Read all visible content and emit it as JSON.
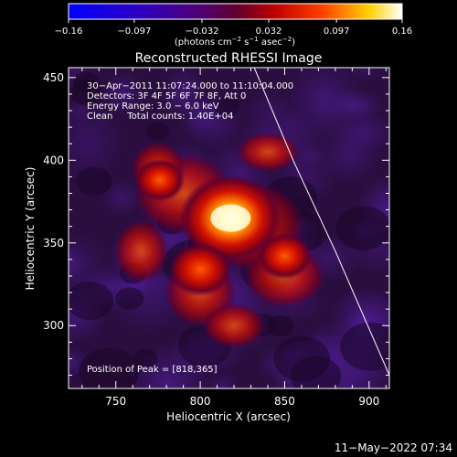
{
  "chart_data": {
    "type": "heatmap",
    "title": "Reconstructed RHESSI Image",
    "xlabel": "Heliocentric X (arcsec)",
    "ylabel": "Heliocentric Y (arcsec)",
    "xlim": [
      722,
      912
    ],
    "ylim": [
      262,
      456
    ],
    "x_ticks": [
      750,
      800,
      850,
      900
    ],
    "y_ticks": [
      300,
      350,
      400,
      450
    ],
    "colorbar": {
      "ticks": [
        -0.16,
        -0.097,
        -0.032,
        0.032,
        0.097,
        0.16
      ],
      "tick_labels": [
        "−0.16",
        "−0.097",
        "−0.032",
        "0.032",
        "0.097",
        "0.16"
      ],
      "range": [
        -0.16,
        0.16
      ],
      "label_prefix": "(photons cm",
      "label_exp1": "−2",
      "label_mid": " s",
      "label_exp2": "−1",
      "label_mid2": " asec",
      "label_exp3": "−2",
      "label_suffix": ")"
    },
    "annotations": [
      "30−Apr−2011 11:07:24.000 to 11:10:04.000",
      "Detectors: 3F 4F 5F 6F 7F 8F, Att 0",
      "Energy Range: 3.0 − 6.0 keV",
      "Clean     Total counts: 1.40E+04"
    ],
    "peak_label": "Position of Peak = [818,365]",
    "peak": [
      818,
      365
    ],
    "sources": [
      {
        "x": 818,
        "y": 365,
        "value": 0.16
      },
      {
        "x": 800,
        "y": 334,
        "value": 0.07
      },
      {
        "x": 850,
        "y": 342,
        "value": 0.05
      },
      {
        "x": 776,
        "y": 388,
        "value": 0.04
      }
    ],
    "limb_curve": [
      [
        832,
        456
      ],
      [
        855,
        400
      ],
      [
        880,
        345
      ],
      [
        912,
        270
      ]
    ]
  },
  "footer": {
    "timestamp": "11−May−2022 07:34"
  }
}
